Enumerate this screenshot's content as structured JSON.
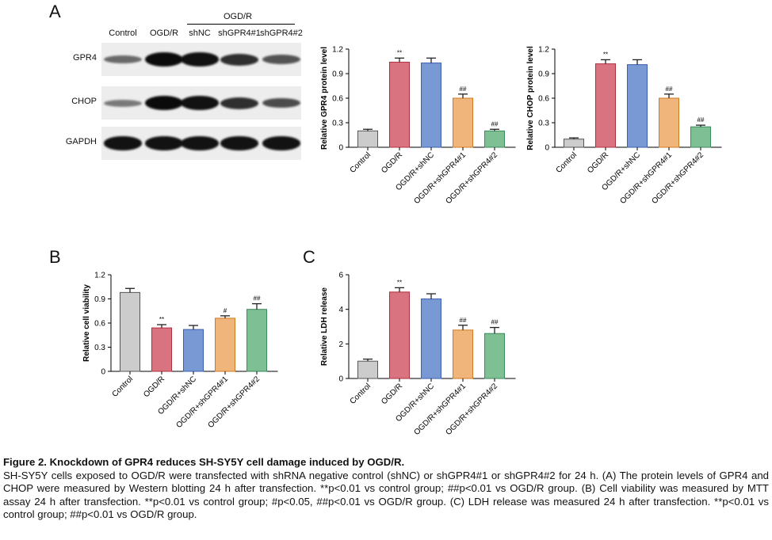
{
  "panel_letters": {
    "a": "A",
    "b": "B",
    "c": "C"
  },
  "western_blot": {
    "group_header": "OGD/R",
    "lanes": [
      "Control",
      "OGD/R",
      "shNC",
      "shGPR4#1",
      "shGPR4#2"
    ],
    "rows": [
      {
        "label": "GPR4",
        "intensity": [
          0.35,
          1.0,
          0.95,
          0.75,
          0.5
        ]
      },
      {
        "label": "CHOP",
        "intensity": [
          0.25,
          1.0,
          0.95,
          0.75,
          0.55
        ]
      },
      {
        "label": "GAPDH",
        "intensity": [
          0.95,
          0.95,
          0.95,
          0.95,
          0.95
        ]
      }
    ]
  },
  "chart_data": [
    {
      "type": "bar",
      "panel": "A",
      "ylabel": "Relative GPR4 protein level",
      "yticks": [
        "0",
        "0.3",
        "0.6",
        "0.9",
        "1.2"
      ],
      "ylim": [
        0,
        1.2
      ],
      "categories": [
        "Control",
        "OGD/R",
        "OGD/R+shNC",
        "OGD/R+shGPR4#1",
        "OGD/R+shGPR4#2"
      ],
      "values": [
        0.2,
        1.04,
        1.03,
        0.6,
        0.2
      ],
      "errors": [
        0.02,
        0.05,
        0.06,
        0.05,
        0.02
      ],
      "annotations": [
        "",
        "**",
        "",
        "##",
        "##"
      ],
      "colors": [
        "#cccccc",
        "#d9737f",
        "#7899d4",
        "#f0b57a",
        "#7fbf94"
      ],
      "edge_colors": [
        "#555555",
        "#b03040",
        "#3a5fb0",
        "#d07a20",
        "#3a8a5a"
      ]
    },
    {
      "type": "bar",
      "panel": "A",
      "ylabel": "Relative CHOP protein level",
      "yticks": [
        "0",
        "0.3",
        "0.6",
        "0.9",
        "1.2"
      ],
      "ylim": [
        0,
        1.2
      ],
      "categories": [
        "Control",
        "OGD/R",
        "OGD/R+shNC",
        "OGD/R+shGPR4#1",
        "OGD/R+shGPR4#2"
      ],
      "values": [
        0.1,
        1.02,
        1.01,
        0.6,
        0.25
      ],
      "errors": [
        0.015,
        0.05,
        0.06,
        0.05,
        0.02
      ],
      "annotations": [
        "",
        "**",
        "",
        "##",
        "##"
      ],
      "colors": [
        "#cccccc",
        "#d9737f",
        "#7899d4",
        "#f0b57a",
        "#7fbf94"
      ],
      "edge_colors": [
        "#555555",
        "#b03040",
        "#3a5fb0",
        "#d07a20",
        "#3a8a5a"
      ]
    },
    {
      "type": "bar",
      "panel": "B",
      "ylabel": "Relative cell viability",
      "yticks": [
        "0",
        "0.3",
        "0.6",
        "0.9",
        "1.2"
      ],
      "ylim": [
        0,
        1.2
      ],
      "categories": [
        "Control",
        "OGD/R",
        "OGD/R+shNC",
        "OGD/R+shGPR4#1",
        "OGD/R+shGPR4#2"
      ],
      "values": [
        0.98,
        0.54,
        0.52,
        0.66,
        0.77
      ],
      "errors": [
        0.05,
        0.04,
        0.05,
        0.03,
        0.07
      ],
      "annotations": [
        "",
        "**",
        "",
        "#",
        "##"
      ],
      "colors": [
        "#cccccc",
        "#d9737f",
        "#7899d4",
        "#f0b57a",
        "#7fbf94"
      ],
      "edge_colors": [
        "#555555",
        "#b03040",
        "#3a5fb0",
        "#d07a20",
        "#3a8a5a"
      ]
    },
    {
      "type": "bar",
      "panel": "C",
      "ylabel": "Relative LDH release",
      "yticks": [
        "0",
        "2",
        "4",
        "6"
      ],
      "ylim": [
        0,
        6
      ],
      "categories": [
        "Control",
        "OGD/R",
        "OGD/R+shNC",
        "OGD/R+shGPR4#1",
        "OGD/R+shGPR4#2"
      ],
      "values": [
        1.0,
        5.0,
        4.6,
        2.8,
        2.6
      ],
      "errors": [
        0.12,
        0.25,
        0.3,
        0.28,
        0.35
      ],
      "annotations": [
        "",
        "**",
        "",
        "##",
        "##"
      ],
      "colors": [
        "#cccccc",
        "#d9737f",
        "#7899d4",
        "#f0b57a",
        "#7fbf94"
      ],
      "edge_colors": [
        "#555555",
        "#b03040",
        "#3a5fb0",
        "#d07a20",
        "#3a8a5a"
      ]
    }
  ],
  "caption": {
    "title": "Figure 2. Knockdown of GPR4 reduces SH-SY5Y cell damage induced by OGD/R.",
    "body": "SH-SY5Y cells exposed to OGD/R were transfected with shRNA negative control (shNC) or shGPR4#1 or shGPR4#2 for 24 h. (A) The protein levels of GPR4 and CHOP were measured by Western blotting 24 h after transfection. **p<0.01 vs control group; ##p<0.01 vs OGD/R group. (B) Cell viability was measured by MTT assay 24 h after transfection. **p<0.01 vs control group; #p<0.05, ##p<0.01 vs OGD/R group. (C) LDH release was measured 24 h after transfection. **p<0.01 vs control group; ##p<0.01 vs OGD/R group."
  }
}
